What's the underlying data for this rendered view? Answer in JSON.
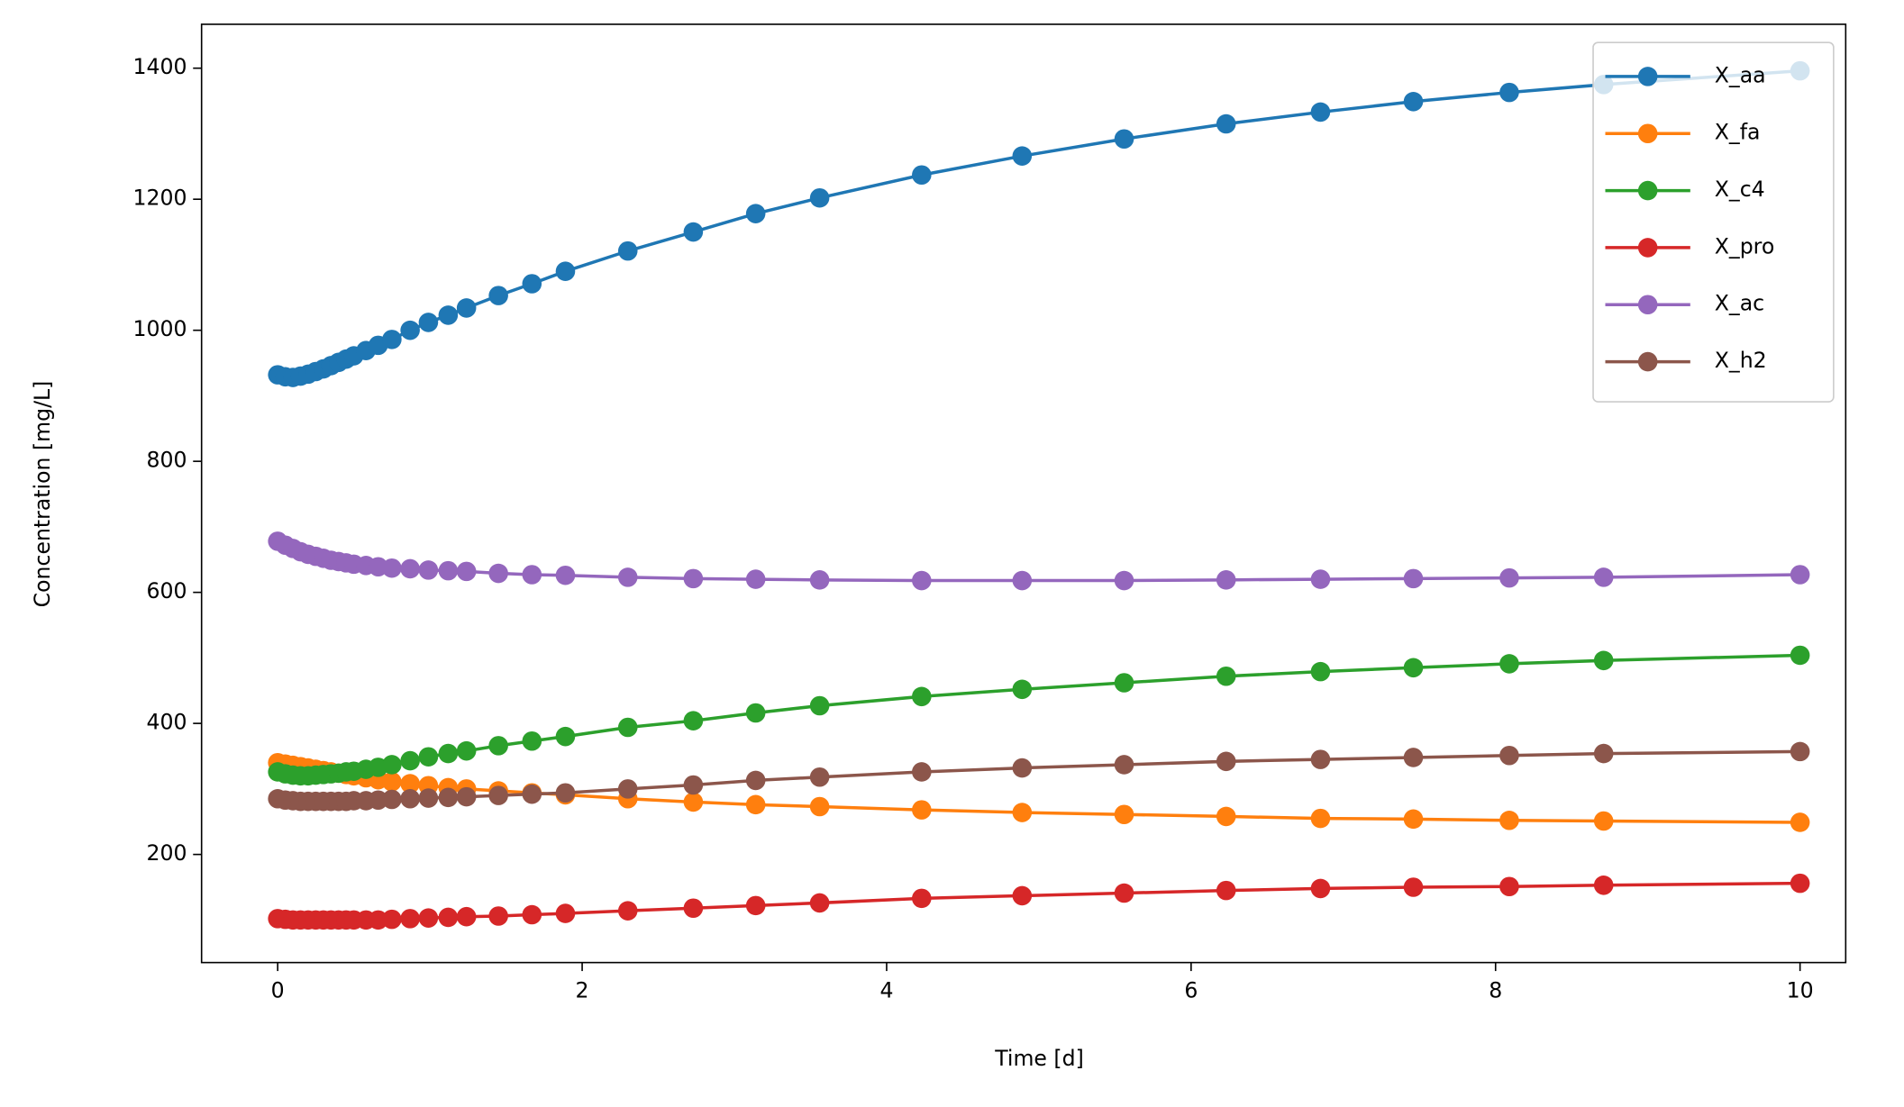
{
  "chart_data": {
    "type": "line",
    "x_label": "Time [d]",
    "y_label": "Concentration [mg/L]",
    "x": [
      0,
      0.05,
      0.1,
      0.15,
      0.2,
      0.25,
      0.3,
      0.35,
      0.4,
      0.45,
      0.5,
      0.58,
      0.66,
      0.75,
      0.87,
      0.99,
      1.12,
      1.24,
      1.45,
      1.67,
      1.89,
      2.3,
      2.73,
      3.14,
      3.56,
      4.23,
      4.89,
      5.56,
      6.23,
      6.85,
      7.46,
      8.09,
      8.71,
      10
    ],
    "series": [
      {
        "name": "X_aa",
        "color": "#1f77b4",
        "values": [
          932,
          929,
          928,
          930,
          933,
          937,
          941,
          946,
          951,
          956,
          961,
          969,
          977,
          986,
          1000,
          1012,
          1023,
          1034,
          1053,
          1071,
          1090,
          1121,
          1150,
          1178,
          1202,
          1237,
          1266,
          1292,
          1315,
          1333,
          1349,
          1363,
          1375,
          1396
        ]
      },
      {
        "name": "X_fa",
        "color": "#ff7f0e",
        "values": [
          340,
          338,
          336,
          334,
          332,
          330,
          328,
          326,
          324,
          322,
          320,
          317,
          314,
          311,
          308,
          305,
          302,
          300,
          297,
          294,
          291,
          285,
          280,
          276,
          273,
          268,
          264,
          261,
          258,
          255,
          254,
          252,
          251,
          249
        ]
      },
      {
        "name": "X_c4",
        "color": "#2ca02c",
        "values": [
          326,
          323,
          321,
          320,
          320,
          321,
          322,
          323,
          324,
          326,
          327,
          330,
          333,
          337,
          343,
          349,
          354,
          358,
          366,
          373,
          380,
          394,
          404,
          416,
          427,
          441,
          452,
          462,
          472,
          479,
          485,
          491,
          496,
          504
        ]
      },
      {
        "name": "X_pro",
        "color": "#d62728",
        "values": [
          102,
          101,
          100,
          100,
          100,
          100,
          100,
          100,
          100,
          100,
          100,
          100,
          100,
          101,
          102,
          103,
          104,
          105,
          106,
          108,
          110,
          114,
          118,
          122,
          126,
          133,
          137,
          141,
          145,
          148,
          150,
          151,
          153,
          156
        ]
      },
      {
        "name": "X_ac",
        "color": "#9467bd",
        "values": [
          678,
          672,
          667,
          662,
          658,
          655,
          652,
          649,
          647,
          645,
          643,
          641,
          639,
          637,
          636,
          634,
          633,
          632,
          629,
          627,
          626,
          623,
          621,
          620,
          619,
          618,
          618,
          618,
          619,
          620,
          621,
          622,
          623,
          627
        ]
      },
      {
        "name": "X_h2",
        "color": "#8c564b",
        "values": [
          285,
          283,
          282,
          281,
          281,
          281,
          281,
          281,
          281,
          281,
          282,
          282,
          283,
          284,
          285,
          286,
          287,
          288,
          290,
          292,
          294,
          300,
          306,
          313,
          318,
          326,
          332,
          337,
          342,
          345,
          348,
          351,
          354,
          357
        ]
      }
    ],
    "xlim": [
      -0.5,
      10.3
    ],
    "ylim": [
      35,
      1467
    ],
    "xticks": [
      0,
      2,
      4,
      6,
      8,
      10
    ],
    "yticks": [
      200,
      400,
      600,
      800,
      1000,
      1200,
      1400
    ],
    "legend": "upper right"
  }
}
